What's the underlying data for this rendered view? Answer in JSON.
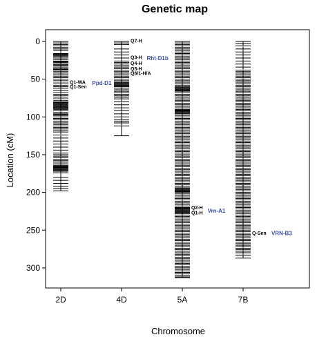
{
  "chart_data": {
    "type": "genetic-map",
    "title": "Genetic map",
    "xlabel": "Chromosome",
    "ylabel": "Location (cM)",
    "ylim": [
      0,
      315
    ],
    "yticks": [
      0,
      50,
      100,
      150,
      200,
      250,
      300
    ],
    "y_inverted": true,
    "gene_color": "#3a4fb0",
    "chromosomes": [
      {
        "name": "2D",
        "length": 198,
        "markers": [
          0,
          2,
          4,
          6,
          8,
          10,
          12,
          16,
          17,
          18,
          19,
          20,
          22,
          24,
          26,
          27,
          28,
          30,
          31,
          32,
          34,
          36,
          37,
          38,
          40,
          42,
          44,
          46,
          48,
          50,
          52,
          55,
          58,
          60,
          62,
          65,
          68,
          70,
          72,
          75,
          78,
          80,
          81,
          82,
          83,
          84,
          85,
          86,
          87,
          88,
          89,
          90,
          92,
          94,
          96,
          97,
          98,
          100,
          102,
          104,
          106,
          108,
          110,
          112,
          114,
          116,
          118,
          120,
          124,
          128,
          132,
          136,
          140,
          144,
          148,
          150,
          152,
          154,
          156,
          158,
          160,
          162,
          164,
          165,
          166,
          167,
          168,
          169,
          170,
          171,
          172,
          174,
          180,
          184,
          188,
          192,
          195,
          198
        ],
        "qtls": [
          {
            "label": "Q1-WA",
            "pos": 54
          },
          {
            "label": "Q1-Sen",
            "pos": 60
          }
        ],
        "genes": [
          {
            "label": "Ppd-D1",
            "pos": 55
          }
        ]
      },
      {
        "name": "4D",
        "length": 125,
        "markers": [
          0,
          2,
          4,
          10,
          14,
          18,
          22,
          26,
          28,
          30,
          32,
          34,
          36,
          38,
          40,
          42,
          44,
          46,
          48,
          50,
          52,
          54,
          55,
          56,
          57,
          58,
          59,
          60,
          62,
          64,
          66,
          68,
          70,
          72,
          74,
          76,
          80,
          84,
          88,
          92,
          96,
          100,
          104,
          106,
          108,
          112,
          125
        ],
        "qtls": [
          {
            "label": "Q7-H",
            "pos": -1
          },
          {
            "label": "Q3-H",
            "pos": 21
          },
          {
            "label": "Q4-H",
            "pos": 29
          },
          {
            "label": "Q5-H",
            "pos": 36
          },
          {
            "label": "Q6/1-H/A",
            "pos": 42
          }
        ],
        "genes": [
          {
            "label": "Rht-D1b",
            "pos": 22
          }
        ]
      },
      {
        "name": "5A",
        "length": 313,
        "markers": [
          0,
          2,
          4,
          6,
          8,
          10,
          12,
          14,
          16,
          18,
          20,
          22,
          24,
          26,
          28,
          30,
          32,
          34,
          36,
          38,
          40,
          42,
          44,
          46,
          48,
          50,
          52,
          54,
          56,
          58,
          60,
          61,
          62,
          63,
          64,
          65,
          66,
          68,
          70,
          72,
          74,
          76,
          78,
          80,
          82,
          84,
          86,
          88,
          90,
          91,
          92,
          93,
          94,
          95,
          96,
          98,
          100,
          102,
          104,
          106,
          108,
          110,
          112,
          114,
          116,
          118,
          120,
          122,
          124,
          126,
          128,
          130,
          132,
          134,
          136,
          138,
          140,
          142,
          144,
          146,
          148,
          150,
          152,
          154,
          156,
          158,
          160,
          162,
          164,
          166,
          168,
          170,
          172,
          174,
          176,
          178,
          180,
          182,
          184,
          186,
          188,
          190,
          192,
          194,
          195,
          196,
          197,
          198,
          199,
          200,
          202,
          204,
          206,
          208,
          210,
          212,
          214,
          216,
          218,
          220,
          221,
          222,
          223,
          224,
          225,
          226,
          227,
          228,
          230,
          232,
          234,
          236,
          238,
          240,
          242,
          244,
          246,
          248,
          250,
          252,
          254,
          256,
          258,
          260,
          262,
          264,
          266,
          268,
          270,
          272,
          274,
          276,
          278,
          280,
          282,
          284,
          286,
          288,
          290,
          292,
          294,
          296,
          298,
          300,
          302,
          304,
          306,
          308,
          310,
          312,
          313
        ],
        "qtls": [
          {
            "label": "Q2-H",
            "pos": 220
          },
          {
            "label": "Q1-H",
            "pos": 227
          }
        ],
        "genes": [
          {
            "label": "Vrn-A1",
            "pos": 224
          }
        ]
      },
      {
        "name": "7B",
        "length": 287,
        "markers": [
          0,
          3,
          6,
          10,
          14,
          18,
          22,
          26,
          30,
          34,
          38,
          40,
          42,
          44,
          46,
          48,
          50,
          52,
          54,
          56,
          58,
          60,
          62,
          64,
          66,
          68,
          70,
          72,
          74,
          76,
          78,
          80,
          82,
          84,
          86,
          88,
          90,
          92,
          94,
          96,
          98,
          100,
          102,
          104,
          106,
          108,
          110,
          112,
          114,
          116,
          118,
          120,
          122,
          124,
          126,
          128,
          130,
          132,
          134,
          136,
          138,
          140,
          142,
          144,
          146,
          148,
          150,
          152,
          154,
          156,
          158,
          160,
          162,
          164,
          166,
          168,
          170,
          172,
          174,
          176,
          178,
          180,
          182,
          184,
          186,
          188,
          190,
          192,
          194,
          196,
          198,
          200,
          202,
          204,
          206,
          208,
          210,
          212,
          214,
          216,
          218,
          220,
          222,
          224,
          226,
          228,
          230,
          232,
          234,
          236,
          238,
          240,
          242,
          244,
          246,
          248,
          250,
          252,
          254,
          256,
          258,
          260,
          262,
          264,
          266,
          268,
          270,
          272,
          274,
          276,
          278,
          280,
          283,
          287
        ],
        "qtls": [
          {
            "label": "Q-Sen",
            "pos": 254
          }
        ],
        "genes": [
          {
            "label": "VRN-B3",
            "pos": 254
          }
        ]
      }
    ]
  }
}
